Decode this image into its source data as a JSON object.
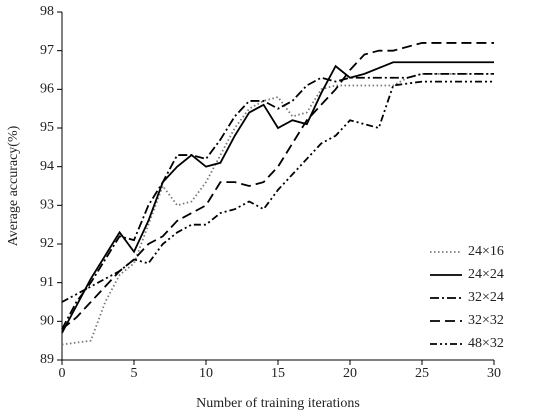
{
  "chart_data": {
    "type": "line",
    "x_label": "Number of training iterations",
    "y_label": "Average accuracy(%)",
    "x": [
      0,
      1,
      2,
      3,
      4,
      5,
      6,
      7,
      8,
      9,
      10,
      11,
      12,
      13,
      14,
      15,
      16,
      17,
      18,
      19,
      20,
      21,
      22,
      23,
      24,
      25,
      26,
      27,
      28,
      29,
      30
    ],
    "xlim": [
      0,
      30
    ],
    "xticks": [
      0,
      5,
      10,
      15,
      20,
      25,
      30
    ],
    "ylim": [
      89,
      98
    ],
    "yticks": [
      89,
      90,
      91,
      92,
      93,
      94,
      95,
      96,
      97,
      98
    ],
    "legend": "lower right",
    "series": [
      {
        "name": "24×16",
        "color": "#777",
        "dash": "1.5,2.5",
        "values": [
          89.4,
          89.45,
          89.5,
          90.5,
          91.2,
          91.5,
          92.5,
          93.5,
          93.0,
          93.1,
          93.6,
          94.3,
          95.0,
          95.5,
          95.7,
          95.8,
          95.3,
          95.4,
          96.0,
          96.1,
          96.1,
          96.1,
          96.1,
          96.1,
          96.3,
          96.4,
          96.4,
          96.4,
          96.4,
          96.4,
          96.4
        ]
      },
      {
        "name": "24×24",
        "color": "#000",
        "dash": "none",
        "values": [
          89.7,
          90.4,
          91.1,
          91.7,
          92.3,
          91.8,
          92.6,
          93.6,
          94.0,
          94.3,
          94.0,
          94.1,
          94.8,
          95.4,
          95.6,
          95.0,
          95.2,
          95.1,
          95.9,
          96.6,
          96.3,
          96.4,
          96.55,
          96.7,
          96.7,
          96.7,
          96.7,
          96.7,
          96.7,
          96.7,
          96.7
        ]
      },
      {
        "name": "32×24",
        "color": "#000",
        "dash": "9,3,2,3",
        "values": [
          89.8,
          90.5,
          91.0,
          91.6,
          92.2,
          92.1,
          93.0,
          93.6,
          94.3,
          94.3,
          94.2,
          94.7,
          95.3,
          95.7,
          95.7,
          95.5,
          95.7,
          96.1,
          96.3,
          96.2,
          96.3,
          96.3,
          96.3,
          96.3,
          96.3,
          96.4,
          96.4,
          96.4,
          96.4,
          96.4,
          96.4
        ]
      },
      {
        "name": "32×32",
        "color": "#000",
        "dash": "10,5",
        "values": [
          89.8,
          90.1,
          90.5,
          90.9,
          91.3,
          91.6,
          92.0,
          92.2,
          92.6,
          92.8,
          93.0,
          93.6,
          93.6,
          93.5,
          93.6,
          94.0,
          94.6,
          95.2,
          95.6,
          96.0,
          96.5,
          96.9,
          97.0,
          97.0,
          97.1,
          97.2,
          97.2,
          97.2,
          97.2,
          97.2,
          97.2
        ]
      },
      {
        "name": "48×32",
        "color": "#000",
        "dash": "7,3,2,3,2,3",
        "values": [
          90.5,
          90.7,
          90.9,
          91.1,
          91.3,
          91.6,
          91.5,
          92.0,
          92.3,
          92.5,
          92.5,
          92.8,
          92.9,
          93.1,
          92.9,
          93.4,
          93.8,
          94.2,
          94.6,
          94.8,
          95.2,
          95.1,
          95.0,
          96.1,
          96.15,
          96.2,
          96.2,
          96.2,
          96.2,
          96.2,
          96.2
        ]
      }
    ]
  }
}
